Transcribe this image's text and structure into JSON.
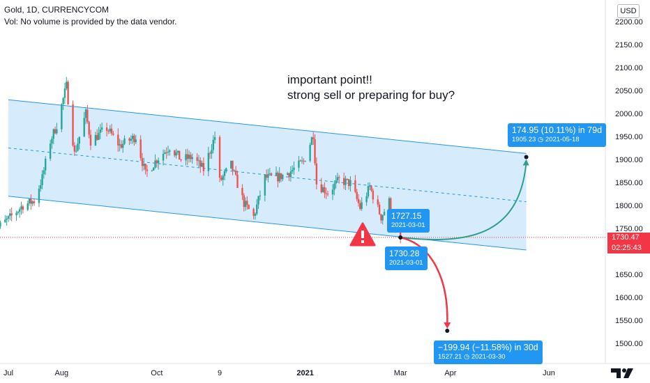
{
  "header": {
    "title": "Gold, 1D, CURRENCYCOM",
    "vol_note": "Vol: No volume is provided by the data vendor."
  },
  "currency_badge": "USD",
  "annotation": {
    "line1": "important point!!",
    "line2": "strong sell or preparing for buy?"
  },
  "current_price": {
    "value": "1730.47",
    "countdown": "02:25:43",
    "color": "#f23645"
  },
  "tags": {
    "top_close": {
      "value": "1727.15",
      "date": "2021-03-01"
    },
    "anchor": {
      "value": "1730.28",
      "date": "2021-03-01"
    },
    "up_projection": {
      "change": "174.95 (10.11%) in 79d",
      "target": "1905.23",
      "date": "2021-05-18"
    },
    "down_projection": {
      "change": "−199.94 (−11.58%) in 30d",
      "target": "1527.21",
      "date": "2021-03-30"
    }
  },
  "colors": {
    "up_candle": "#26a69a",
    "down_candle": "#ef5350",
    "channel_fill": "#cfe8fc",
    "channel_line": "#2196f3",
    "up_arrow": "#2f9e8a",
    "down_arrow": "#f23645",
    "tag_bg": "#2196f3"
  },
  "icons": {
    "warning": "warning-triangle-icon",
    "clock": "clock-icon",
    "logo": "tradingview-logo-icon"
  },
  "chart_data": {
    "type": "candlestick",
    "y_axis": {
      "ticks": [
        "2200.00",
        "2150.00",
        "2100.00",
        "2050.00",
        "2000.00",
        "1950.00",
        "1900.00",
        "1850.00",
        "1800.00",
        "1750.00",
        "1650.00",
        "1600.00",
        "1550.00",
        "1500.00"
      ],
      "ylim": [
        1460,
        2225
      ]
    },
    "x_axis": {
      "ticks": [
        "Jul",
        "Aug",
        "Oct",
        "9",
        "2021",
        "Mar",
        "Apr",
        "Jun"
      ],
      "tick_dates": [
        "2020-07-01",
        "2020-08-03",
        "2020-10-01",
        "2020-11-09",
        "2021-01-01",
        "2021-03-01",
        "2021-04-01",
        "2021-06-01"
      ],
      "xlim": [
        "2020-07-01",
        "2021-06-25"
      ]
    },
    "channel": {
      "upper": [
        [
          "2020-07-01",
          2030
        ],
        [
          "2021-05-18",
          1913
        ]
      ],
      "mid": [
        [
          "2020-07-01",
          1925
        ],
        [
          "2021-05-18",
          1808
        ]
      ],
      "lower": [
        [
          "2020-07-01",
          1820
        ],
        [
          "2021-05-18",
          1703
        ]
      ]
    },
    "projections": {
      "anchor": [
        "2021-03-01",
        1730.28
      ],
      "up": [
        "2021-05-18",
        1905.23
      ],
      "down": [
        "2021-03-30",
        1527.21
      ]
    },
    "price_path": [
      [
        "2020-06-22",
        1745
      ],
      [
        "2020-07-01",
        1770
      ],
      [
        "2020-07-10",
        1800
      ],
      [
        "2020-07-17",
        1810
      ],
      [
        "2020-07-22",
        1860
      ],
      [
        "2020-07-27",
        1940
      ],
      [
        "2020-07-31",
        1975
      ],
      [
        "2020-08-06",
        2060
      ],
      [
        "2020-08-11",
        1912
      ],
      [
        "2020-08-18",
        2000
      ],
      [
        "2020-08-21",
        1940
      ],
      [
        "2020-08-31",
        1968
      ],
      [
        "2020-09-08",
        1930
      ],
      [
        "2020-09-18",
        1950
      ],
      [
        "2020-09-24",
        1868
      ],
      [
        "2020-10-01",
        1900
      ],
      [
        "2020-10-09",
        1928
      ],
      [
        "2020-10-16",
        1900
      ],
      [
        "2020-10-23",
        1905
      ],
      [
        "2020-10-30",
        1878
      ],
      [
        "2020-11-06",
        1950
      ],
      [
        "2020-11-09",
        1852
      ],
      [
        "2020-11-16",
        1888
      ],
      [
        "2020-11-24",
        1805
      ],
      [
        "2020-11-30",
        1775
      ],
      [
        "2020-12-07",
        1860
      ],
      [
        "2020-12-16",
        1862
      ],
      [
        "2020-12-22",
        1872
      ],
      [
        "2020-12-31",
        1895
      ],
      [
        "2021-01-06",
        1955
      ],
      [
        "2021-01-08",
        1848
      ],
      [
        "2021-01-15",
        1828
      ],
      [
        "2021-01-22",
        1855
      ],
      [
        "2021-01-29",
        1848
      ],
      [
        "2021-02-04",
        1795
      ],
      [
        "2021-02-10",
        1840
      ],
      [
        "2021-02-17",
        1775
      ],
      [
        "2021-02-22",
        1808
      ],
      [
        "2021-02-26",
        1734
      ],
      [
        "2021-03-01",
        1727.15
      ]
    ]
  }
}
